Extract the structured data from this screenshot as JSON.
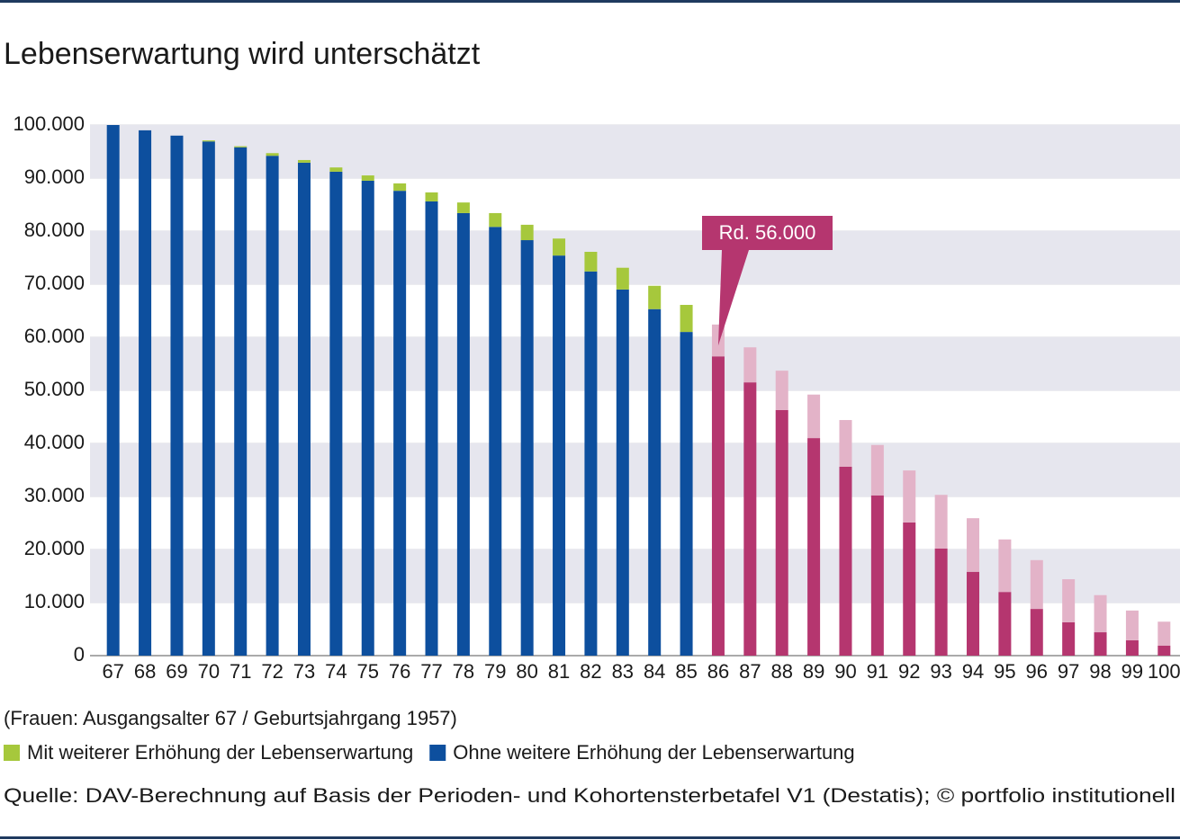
{
  "chart_data": {
    "type": "stacked_bar",
    "title": "Lebenserwartung wird unterschätzt",
    "subtitle": "(Frauen: Ausgangsalter 67 / Geburtsjahrgang 1957)",
    "source": "Quelle: DAV-Berechnung auf Basis der Perioden- und Kohortensterbetafel V1 (Destatis); © portfolio institutionell",
    "annotation": "Rd. 56.000",
    "categories": [
      "67",
      "68",
      "69",
      "70",
      "71",
      "72",
      "73",
      "74",
      "75",
      "76",
      "77",
      "78",
      "79",
      "80",
      "81",
      "82",
      "83",
      "84",
      "85",
      "86",
      "87",
      "88",
      "89",
      "90",
      "91",
      "92",
      "93",
      "94",
      "95",
      "96",
      "97",
      "98",
      "99",
      "100"
    ],
    "highlight_start": 19,
    "series": [
      {
        "name": "Ohne weitere Erhöhung der Lebenserwartung",
        "color": "#0d4f9e",
        "highlight_color": "#b5366f",
        "values": [
          100000,
          99000,
          98000,
          96900,
          95800,
          94200,
          92900,
          91200,
          89500,
          87600,
          85600,
          83400,
          80800,
          78300,
          75400,
          72400,
          69000,
          65300,
          61000,
          56400,
          51500,
          46300,
          41000,
          35600,
          30200,
          25100,
          20200,
          15800,
          12000,
          8800,
          6300,
          4400,
          2900,
          1900
        ]
      },
      {
        "name": "Mit weiterer Erhöhung der Lebenserwartung",
        "color": "#a6c83c",
        "highlight_color": "#e3b3c8",
        "values": [
          0,
          0,
          0,
          200,
          200,
          500,
          500,
          800,
          1000,
          1400,
          1700,
          2000,
          2600,
          2900,
          3200,
          3700,
          4100,
          4400,
          5100,
          6000,
          6600,
          7400,
          8200,
          8800,
          9500,
          9800,
          10100,
          10100,
          9900,
          9200,
          8100,
          7000,
          5600,
          4500
        ]
      }
    ],
    "ylim": [
      0,
      100000
    ],
    "yticks": [
      0,
      {
        "value": 10000,
        "label": "10.000"
      },
      {
        "value": 20000,
        "label": "20.000"
      },
      {
        "value": 30000,
        "label": "30.000"
      },
      {
        "value": 40000,
        "label": "40.000"
      },
      {
        "value": 50000,
        "label": "50.000"
      },
      {
        "value": 60000,
        "label": "60.000"
      },
      {
        "value": 70000,
        "label": "70.000"
      },
      {
        "value": 80000,
        "label": "80.000"
      },
      {
        "value": 90000,
        "label": "90.000"
      },
      {
        "value": 100000,
        "label": "100.000"
      }
    ],
    "grid": "bands"
  }
}
